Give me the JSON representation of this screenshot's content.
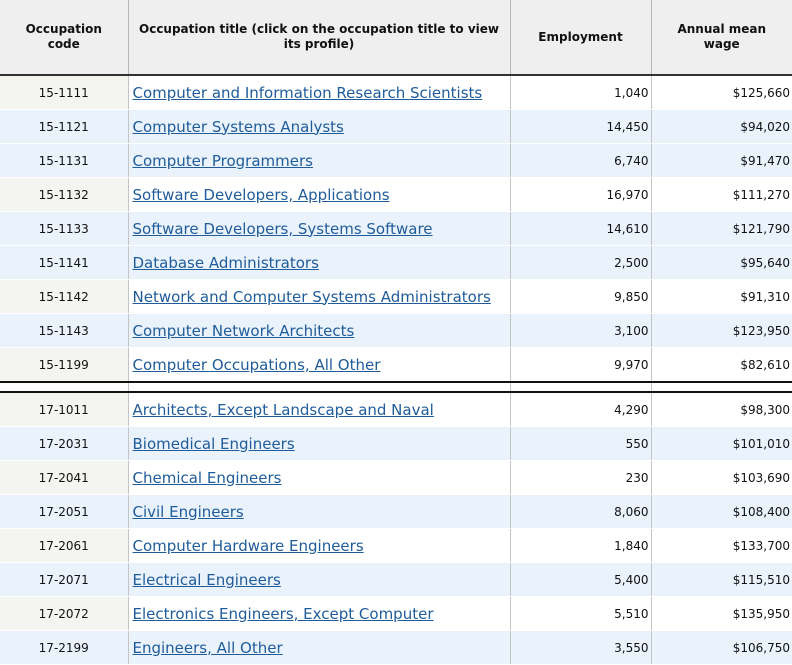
{
  "table": {
    "headers": {
      "code": "Occupation code",
      "title": "Occupation title (click on the occupation title to view its profile)",
      "employment": "Employment",
      "wage": "Annual mean wage"
    },
    "groups": [
      {
        "rows": [
          {
            "code": "15-1111",
            "title": "Computer and Information Research Scientists",
            "employment": "1,040",
            "wage": "$125,660"
          },
          {
            "code": "15-1121",
            "title": "Computer Systems Analysts",
            "employment": "14,450",
            "wage": "$94,020"
          },
          {
            "code": "15-1131",
            "title": "Computer Programmers",
            "employment": "6,740",
            "wage": "$91,470"
          },
          {
            "code": "15-1132",
            "title": "Software Developers, Applications",
            "employment": "16,970",
            "wage": "$111,270"
          },
          {
            "code": "15-1133",
            "title": "Software Developers, Systems Software",
            "employment": "14,610",
            "wage": "$121,790"
          },
          {
            "code": "15-1141",
            "title": "Database Administrators",
            "employment": "2,500",
            "wage": "$95,640"
          },
          {
            "code": "15-1142",
            "title": "Network and Computer Systems Administrators",
            "employment": "9,850",
            "wage": "$91,310"
          },
          {
            "code": "15-1143",
            "title": "Computer Network Architects",
            "employment": "3,100",
            "wage": "$123,950"
          },
          {
            "code": "15-1199",
            "title": "Computer Occupations, All Other",
            "employment": "9,970",
            "wage": "$82,610"
          }
        ]
      },
      {
        "rows": [
          {
            "code": "17-1011",
            "title": "Architects, Except Landscape and Naval",
            "employment": "4,290",
            "wage": "$98,300"
          },
          {
            "code": "17-2031",
            "title": "Biomedical Engineers",
            "employment": "550",
            "wage": "$101,010"
          },
          {
            "code": "17-2041",
            "title": "Chemical Engineers",
            "employment": "230",
            "wage": "$103,690"
          },
          {
            "code": "17-2051",
            "title": "Civil Engineers",
            "employment": "8,060",
            "wage": "$108,400"
          },
          {
            "code": "17-2061",
            "title": "Computer Hardware Engineers",
            "employment": "1,840",
            "wage": "$133,700"
          },
          {
            "code": "17-2071",
            "title": "Electrical Engineers",
            "employment": "5,400",
            "wage": "$115,510"
          },
          {
            "code": "17-2072",
            "title": "Electronics Engineers, Except Computer",
            "employment": "5,510",
            "wage": "$135,950"
          },
          {
            "code": "17-2199",
            "title": "Engineers, All Other",
            "employment": "3,550",
            "wage": "$106,750"
          }
        ]
      }
    ]
  }
}
